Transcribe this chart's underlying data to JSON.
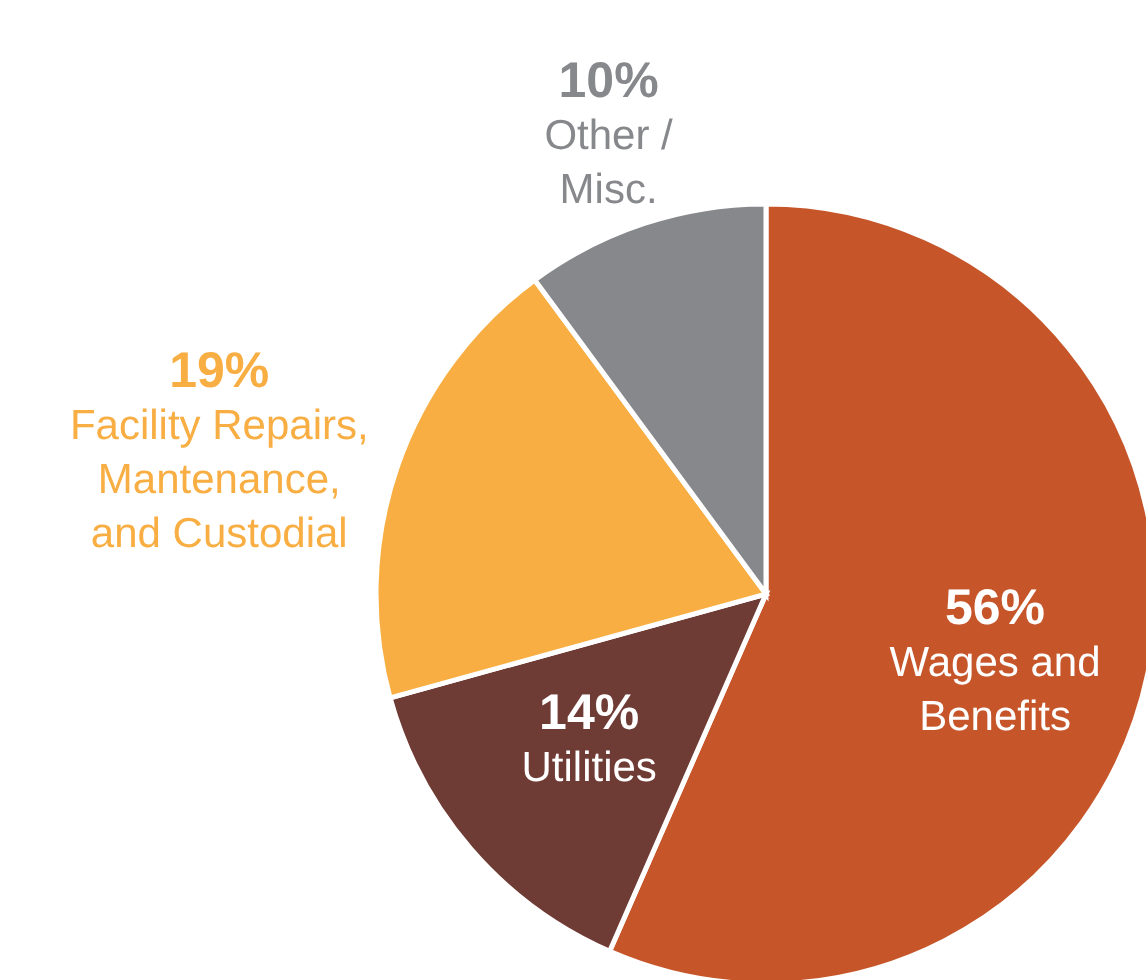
{
  "chart_data": {
    "type": "pie",
    "categories": [
      "Wages and Benefits",
      "Utilities",
      "Facility Repairs, Mantenance, and Custodial",
      "Other / Misc."
    ],
    "values": [
      56,
      14,
      19,
      10
    ],
    "colors": [
      "#c6562a",
      "#6f3b35",
      "#f8ae42",
      "#87888c"
    ],
    "value_labels": [
      "56%",
      "14%",
      "19%",
      "10%"
    ]
  }
}
